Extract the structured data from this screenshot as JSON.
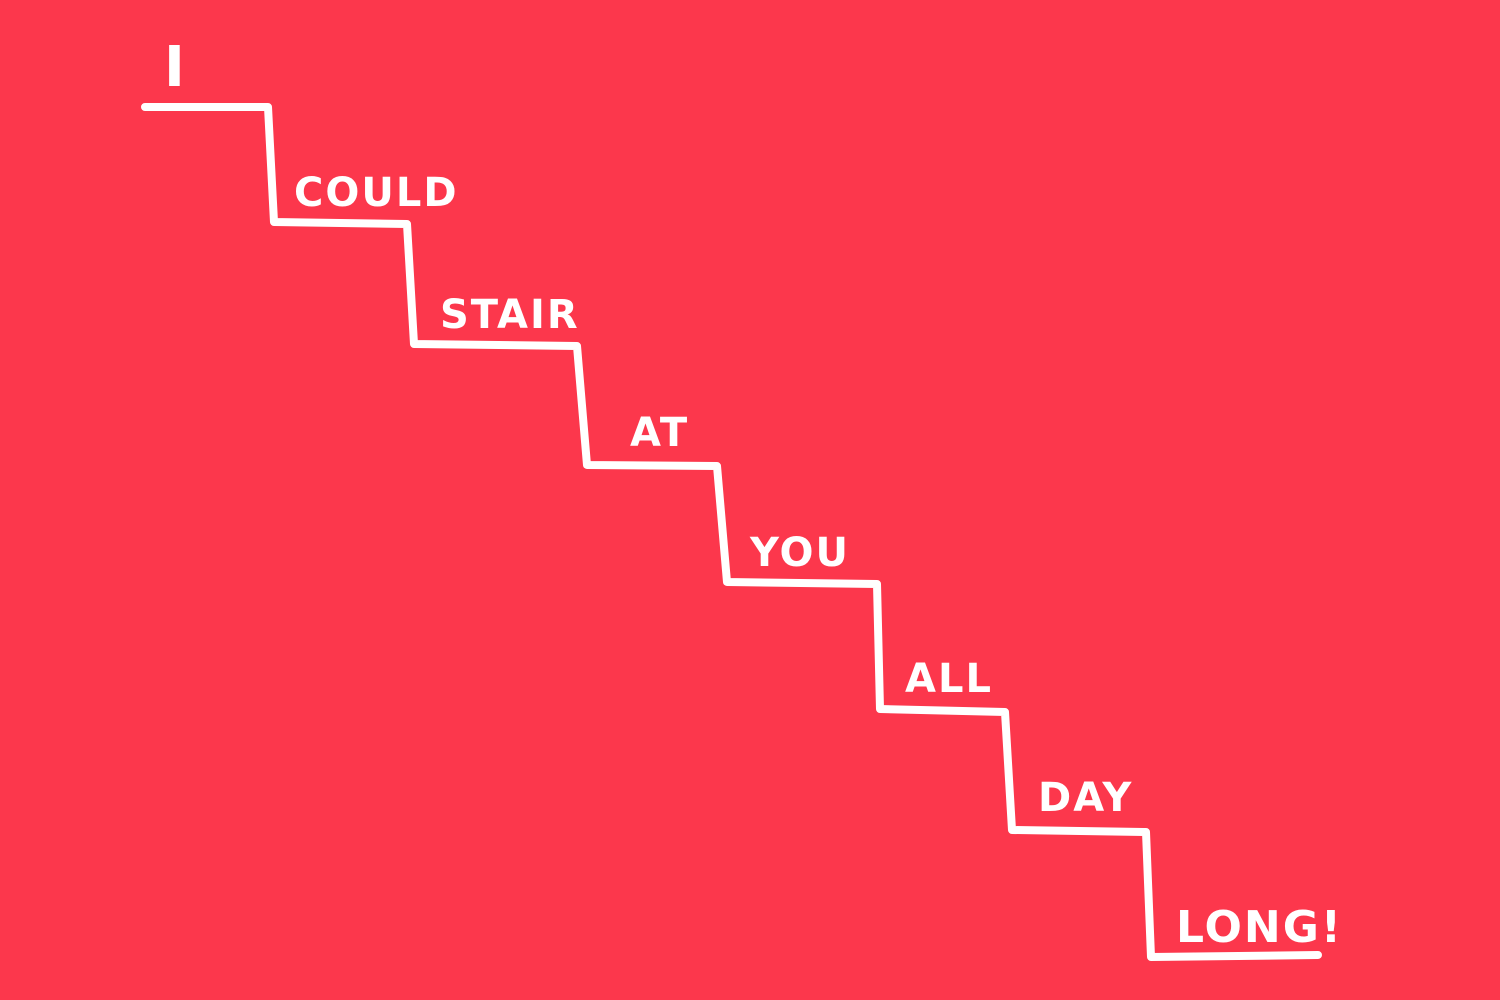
{
  "colors": {
    "background": "#fc374c",
    "ink": "#ffffff"
  },
  "words": [
    {
      "text": "I"
    },
    {
      "text": "COULD"
    },
    {
      "text": "STAIR"
    },
    {
      "text": "AT"
    },
    {
      "text": "YOU"
    },
    {
      "text": "ALL"
    },
    {
      "text": "DAY"
    },
    {
      "text": "LONG!"
    }
  ]
}
